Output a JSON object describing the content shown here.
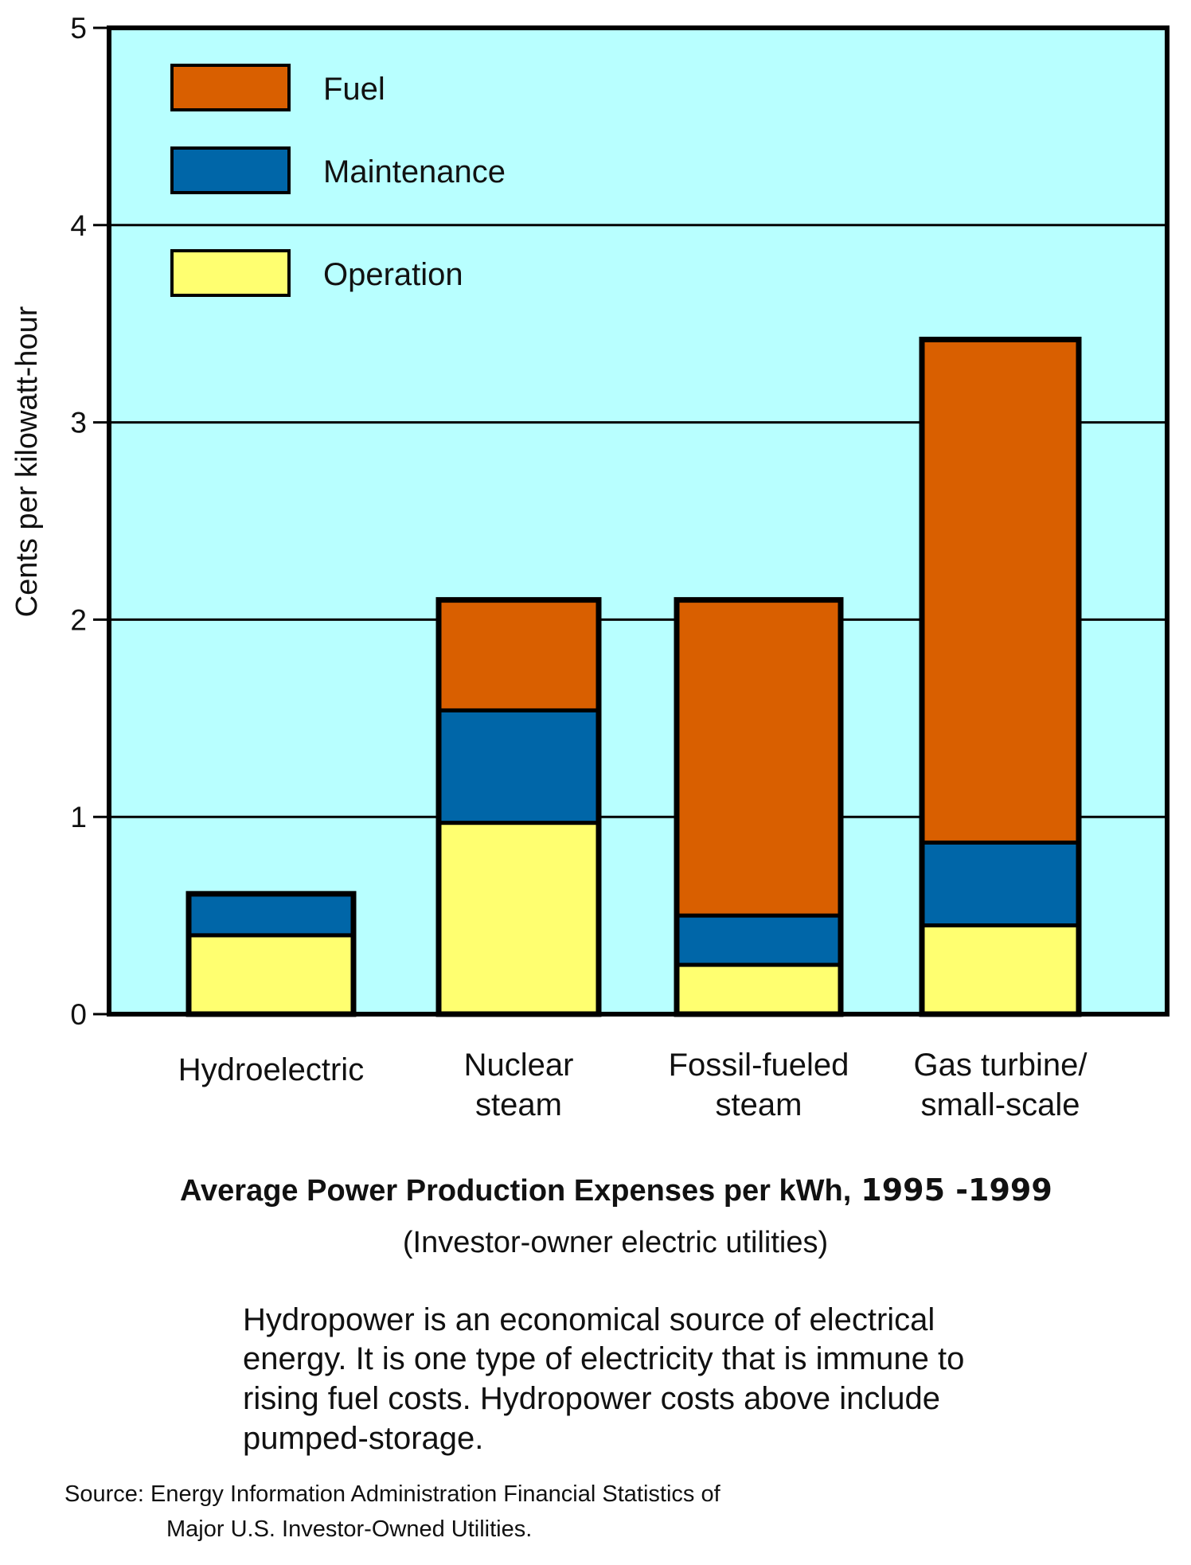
{
  "chart_data": {
    "type": "bar",
    "stacked": true,
    "title": "Average Power Production Expenses per kWh,",
    "title_years": "1995 -1999",
    "subtitle": "(Investor-owner electric utilities)",
    "ylabel": "Cents per kilowatt-hour",
    "xlabel": "",
    "ylim": [
      0,
      5
    ],
    "yticks": [
      "0",
      "1",
      "2",
      "3",
      "4",
      "5"
    ],
    "grid": true,
    "legend_placement": "top-left",
    "categories": [
      [
        "Hydroelectric"
      ],
      [
        "Nuclear",
        "steam"
      ],
      [
        "Fossil-fueled",
        "steam"
      ],
      [
        "Gas turbine/",
        "small-scale"
      ]
    ],
    "series": [
      {
        "name": "Operation",
        "color": "#ffff70",
        "values": [
          0.4,
          0.97,
          0.25,
          0.45
        ]
      },
      {
        "name": "Maintenance",
        "color": "#0066a8",
        "values": [
          0.21,
          0.57,
          0.25,
          0.42
        ]
      },
      {
        "name": "Fuel",
        "color": "#d95f00",
        "values": [
          0.0,
          0.56,
          1.6,
          2.55
        ]
      }
    ],
    "legend_order": [
      "Fuel",
      "Maintenance",
      "Operation"
    ],
    "background_color": "#b8ffff"
  },
  "caption": {
    "lines": [
      "Hydropower is an economical source of electrical",
      "energy.  It is one type of electricity that is immune to",
      "rising fuel costs.  Hydropower costs above  include",
      "pumped-storage."
    ]
  },
  "source": {
    "line1": "Source: Energy Information Administration Financial Statistics of",
    "line2": "Major U.S. Investor-Owned Utilities."
  }
}
